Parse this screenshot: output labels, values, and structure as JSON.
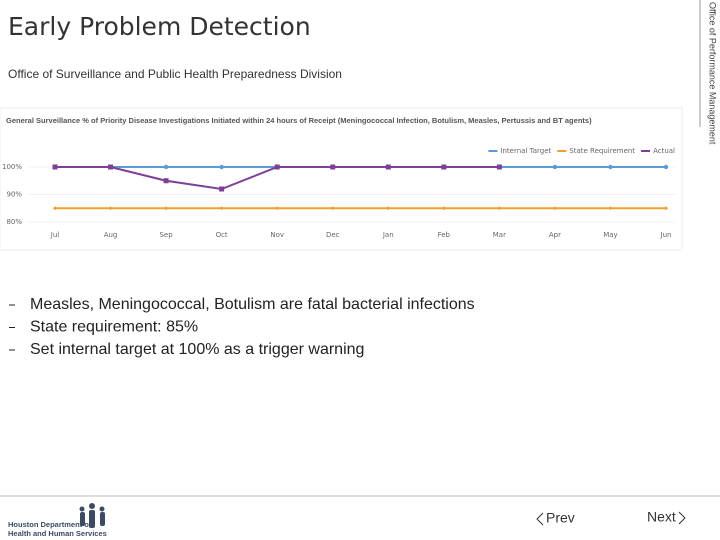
{
  "header": {
    "title": "Early Problem Detection",
    "subtitle": "Office of Surveillance and Public Health Preparedness Division",
    "side_label": "Office of Performance Management"
  },
  "chart_data": {
    "type": "line",
    "title": "General Surveillance % of Priority Disease Investigations Initiated within 24 hours of Receipt (Meningococcal Infection, Botulism, Measles, Pertussis and BT agents)",
    "categories": [
      "Jul",
      "Aug",
      "Sep",
      "Oct",
      "Nov",
      "Dec",
      "Jan",
      "Feb",
      "Mar",
      "Apr",
      "May",
      "Jun"
    ],
    "series": [
      {
        "name": "Internal Target",
        "color": "#5b9bd5",
        "values": [
          100,
          100,
          100,
          100,
          100,
          100,
          100,
          100,
          100,
          100,
          100,
          100
        ]
      },
      {
        "name": "State Requirement",
        "color": "#f0a030",
        "values": [
          85,
          85,
          85,
          85,
          85,
          85,
          85,
          85,
          85,
          85,
          85,
          85
        ]
      },
      {
        "name": "Actual",
        "color": "#7e3f98",
        "values": [
          100,
          100,
          95,
          92,
          100,
          100,
          100,
          100,
          100,
          null,
          null,
          null
        ]
      }
    ],
    "ylim": [
      80,
      100
    ],
    "yticks": [
      {
        "value": 100,
        "label": "100%"
      },
      {
        "value": 90,
        "label": "90%"
      },
      {
        "value": 80,
        "label": "80%"
      }
    ],
    "legend": "top-right"
  },
  "bullets": [
    "Measles, Meningococcal, Botulism are fatal bacterial infections",
    "State requirement: 85%",
    "Set internal target at 100% as a trigger warning"
  ],
  "footer": {
    "logo_lines": [
      "Houston Department of",
      "Health and Human Services"
    ],
    "prev": "Prev",
    "next": "Next"
  }
}
